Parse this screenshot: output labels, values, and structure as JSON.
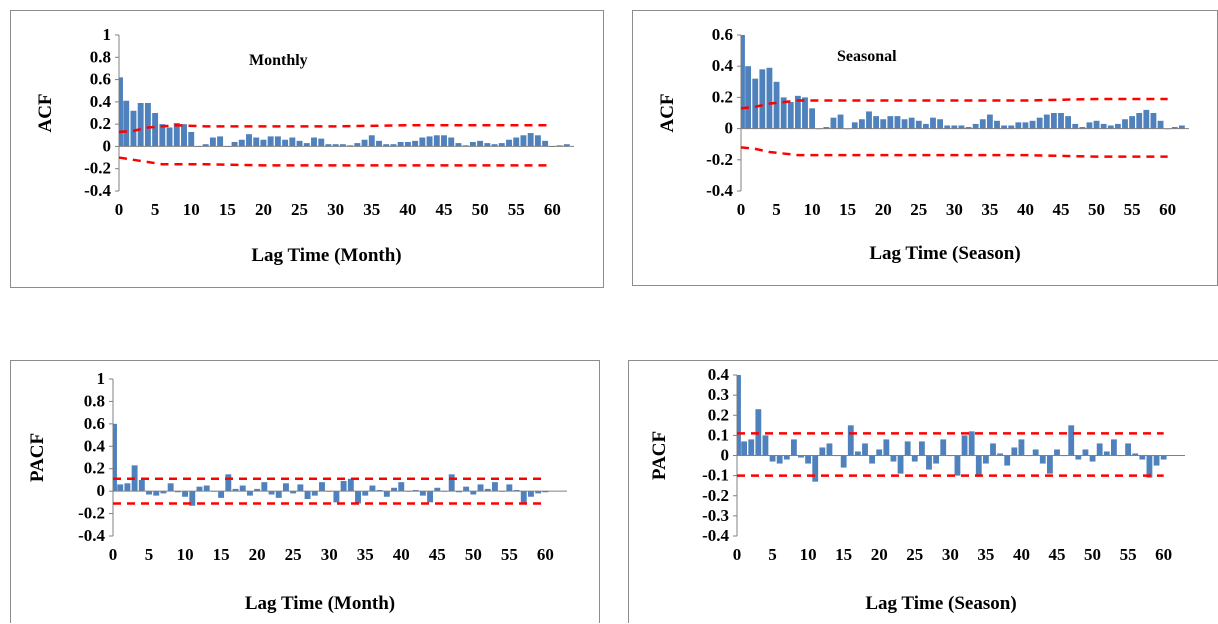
{
  "colors": {
    "bar": "#4f81bd",
    "confidence": "#ff0000",
    "axis": "#808080",
    "frame": "#8c8c8c"
  },
  "chart_data": [
    {
      "type": "bar",
      "name": "acf-monthly",
      "annotation": "Monthly",
      "ylabel": "ACF",
      "xlabel": "Lag Time (Month)",
      "ylim": [
        -0.4,
        1.0
      ],
      "yticks": [
        1,
        0.8,
        0.6,
        0.4,
        0.2,
        0,
        -0.2,
        -0.4
      ],
      "ytick_labels": [
        "1",
        "0.8",
        "0.6",
        "0.4",
        "0.2",
        "0",
        "-0.2",
        "-0.4"
      ],
      "xlim": [
        0,
        63
      ],
      "xticks": [
        0,
        5,
        10,
        15,
        20,
        25,
        30,
        35,
        40,
        45,
        50,
        55,
        60
      ],
      "grid": false,
      "series": [
        {
          "x": [
            0,
            1,
            2,
            3,
            4,
            5,
            6,
            7,
            8,
            9,
            10,
            11,
            12,
            13,
            14,
            15,
            16,
            17,
            18,
            19,
            20,
            21,
            22,
            23,
            24,
            25,
            26,
            27,
            28,
            29,
            30,
            31,
            32,
            33,
            34,
            35,
            36,
            37,
            38,
            39,
            40,
            41,
            42,
            43,
            44,
            45,
            46,
            47,
            48,
            49,
            50,
            51,
            52,
            53,
            54,
            55,
            56,
            57,
            58,
            59,
            60,
            61,
            62
          ],
          "values": [
            0.62,
            0.41,
            0.32,
            0.39,
            0.39,
            0.3,
            0.2,
            0.17,
            0.21,
            0.2,
            0.13,
            0.0,
            0.02,
            0.08,
            0.09,
            0.0,
            0.04,
            0.06,
            0.11,
            0.08,
            0.06,
            0.09,
            0.09,
            0.06,
            0.08,
            0.05,
            0.03,
            0.08,
            0.07,
            0.02,
            0.02,
            0.02,
            0.01,
            0.03,
            0.06,
            0.1,
            0.05,
            0.02,
            0.02,
            0.04,
            0.04,
            0.05,
            0.08,
            0.09,
            0.1,
            0.1,
            0.08,
            0.03,
            0.01,
            0.04,
            0.05,
            0.03,
            0.02,
            0.03,
            0.06,
            0.08,
            0.1,
            0.12,
            0.1,
            0.05,
            0.0,
            0.01,
            0.02
          ]
        }
      ],
      "confidence_upper": {
        "x": [
          0,
          2,
          4,
          6,
          8,
          12,
          20,
          30,
          40,
          50,
          60
        ],
        "values": [
          0.13,
          0.14,
          0.17,
          0.18,
          0.19,
          0.18,
          0.18,
          0.18,
          0.19,
          0.19,
          0.19
        ]
      },
      "confidence_lower": {
        "x": [
          0,
          2,
          4,
          6,
          8,
          12,
          20,
          30,
          40,
          50,
          60
        ],
        "values": [
          -0.1,
          -0.12,
          -0.14,
          -0.16,
          -0.16,
          -0.16,
          -0.17,
          -0.17,
          -0.17,
          -0.17,
          -0.17
        ]
      }
    },
    {
      "type": "bar",
      "name": "acf-seasonal",
      "annotation": "Seasonal",
      "ylabel": "ACF",
      "xlabel": "Lag Time (Season)",
      "ylim": [
        -0.4,
        0.6
      ],
      "yticks": [
        0.6,
        0.4,
        0.2,
        0,
        -0.2,
        -0.4
      ],
      "ytick_labels": [
        "0.6",
        "0.4",
        "0.2",
        "0",
        "-0.2",
        "-0.4"
      ],
      "xlim": [
        0,
        63
      ],
      "xticks": [
        0,
        5,
        10,
        15,
        20,
        25,
        30,
        35,
        40,
        45,
        50,
        55,
        60
      ],
      "grid": false,
      "series": [
        {
          "x": [
            0,
            1,
            2,
            3,
            4,
            5,
            6,
            7,
            8,
            9,
            10,
            11,
            12,
            13,
            14,
            15,
            16,
            17,
            18,
            19,
            20,
            21,
            22,
            23,
            24,
            25,
            26,
            27,
            28,
            29,
            30,
            31,
            32,
            33,
            34,
            35,
            36,
            37,
            38,
            39,
            40,
            41,
            42,
            43,
            44,
            45,
            46,
            47,
            48,
            49,
            50,
            51,
            52,
            53,
            54,
            55,
            56,
            57,
            58,
            59,
            60,
            61,
            62
          ],
          "values": [
            0.6,
            0.4,
            0.32,
            0.38,
            0.39,
            0.3,
            0.2,
            0.17,
            0.21,
            0.2,
            0.13,
            0.0,
            0.01,
            0.07,
            0.09,
            0.0,
            0.04,
            0.06,
            0.11,
            0.08,
            0.06,
            0.08,
            0.08,
            0.06,
            0.07,
            0.05,
            0.03,
            0.07,
            0.06,
            0.02,
            0.02,
            0.02,
            0.01,
            0.03,
            0.06,
            0.09,
            0.05,
            0.02,
            0.02,
            0.04,
            0.04,
            0.05,
            0.07,
            0.09,
            0.1,
            0.1,
            0.08,
            0.03,
            0.01,
            0.04,
            0.05,
            0.03,
            0.02,
            0.03,
            0.06,
            0.08,
            0.1,
            0.12,
            0.1,
            0.05,
            0.0,
            0.01,
            0.02
          ]
        }
      ],
      "confidence_upper": {
        "x": [
          0,
          2,
          4,
          6,
          8,
          12,
          20,
          30,
          40,
          50,
          60
        ],
        "values": [
          0.13,
          0.14,
          0.16,
          0.17,
          0.18,
          0.18,
          0.18,
          0.18,
          0.18,
          0.19,
          0.19
        ]
      },
      "confidence_lower": {
        "x": [
          0,
          2,
          4,
          6,
          8,
          12,
          20,
          30,
          40,
          50,
          60
        ],
        "values": [
          -0.12,
          -0.13,
          -0.15,
          -0.16,
          -0.17,
          -0.17,
          -0.17,
          -0.17,
          -0.17,
          -0.18,
          -0.18
        ]
      }
    },
    {
      "type": "bar",
      "name": "pacf-monthly",
      "ylabel": "PACF",
      "xlabel": "Lag Time (Month)",
      "ylim": [
        -0.4,
        1.0
      ],
      "yticks": [
        1,
        0.8,
        0.6,
        0.4,
        0.2,
        0,
        -0.2,
        -0.4
      ],
      "ytick_labels": [
        "1",
        "0.8",
        "0.6",
        "0.4",
        "0.2",
        "0",
        "-0.2",
        "-0.4"
      ],
      "xlim": [
        0,
        63
      ],
      "xticks": [
        0,
        5,
        10,
        15,
        20,
        25,
        30,
        35,
        40,
        45,
        50,
        55,
        60
      ],
      "grid": false,
      "series": [
        {
          "x": [
            0,
            1,
            2,
            3,
            4,
            5,
            6,
            7,
            8,
            9,
            10,
            11,
            12,
            13,
            14,
            15,
            16,
            17,
            18,
            19,
            20,
            21,
            22,
            23,
            24,
            25,
            26,
            27,
            28,
            29,
            30,
            31,
            32,
            33,
            34,
            35,
            36,
            37,
            38,
            39,
            40,
            41,
            42,
            43,
            44,
            45,
            46,
            47,
            48,
            49,
            50,
            51,
            52,
            53,
            54,
            55,
            56,
            57,
            58,
            59,
            60
          ],
          "values": [
            0.6,
            0.06,
            0.07,
            0.23,
            0.1,
            -0.03,
            -0.04,
            -0.02,
            0.07,
            -0.01,
            -0.05,
            -0.13,
            0.04,
            0.05,
            0.0,
            -0.06,
            0.15,
            0.02,
            0.05,
            -0.04,
            0.02,
            0.08,
            -0.03,
            -0.06,
            0.07,
            -0.02,
            0.06,
            -0.07,
            -0.04,
            0.08,
            0.0,
            -0.1,
            0.09,
            0.11,
            -0.11,
            -0.04,
            0.05,
            0.01,
            -0.05,
            0.03,
            0.08,
            0.0,
            0.01,
            -0.04,
            -0.1,
            0.03,
            0.0,
            0.15,
            -0.01,
            0.04,
            -0.03,
            0.06,
            0.02,
            0.08,
            0.0,
            0.06,
            0.01,
            -0.11,
            -0.05,
            -0.02,
            -0.01
          ]
        }
      ],
      "confidence_upper": 0.11,
      "confidence_lower": -0.11
    },
    {
      "type": "bar",
      "name": "pacf-seasonal",
      "ylabel": "PACF",
      "xlabel": "Lag Time (Season)",
      "ylim": [
        -0.4,
        0.4
      ],
      "yticks": [
        0.4,
        0.3,
        0.2,
        0.1,
        0,
        -0.1,
        -0.2,
        -0.3,
        -0.4
      ],
      "ytick_labels": [
        "0.4",
        "0.3",
        "0.2",
        "0.1",
        "0",
        "-0.1",
        "-0.2",
        "-0.3",
        "-0.4"
      ],
      "xlim": [
        0,
        63
      ],
      "xticks": [
        0,
        5,
        10,
        15,
        20,
        25,
        30,
        35,
        40,
        45,
        50,
        55,
        60
      ],
      "grid": false,
      "series": [
        {
          "x": [
            0,
            1,
            2,
            3,
            4,
            5,
            6,
            7,
            8,
            9,
            10,
            11,
            12,
            13,
            14,
            15,
            16,
            17,
            18,
            19,
            20,
            21,
            22,
            23,
            24,
            25,
            26,
            27,
            28,
            29,
            30,
            31,
            32,
            33,
            34,
            35,
            36,
            37,
            38,
            39,
            40,
            41,
            42,
            43,
            44,
            45,
            46,
            47,
            48,
            49,
            50,
            51,
            52,
            53,
            54,
            55,
            56,
            57,
            58,
            59,
            60
          ],
          "values": [
            0.4,
            0.07,
            0.08,
            0.23,
            0.1,
            -0.03,
            -0.04,
            -0.02,
            0.08,
            -0.01,
            -0.04,
            -0.13,
            0.04,
            0.06,
            0.0,
            -0.06,
            0.15,
            0.02,
            0.06,
            -0.04,
            0.03,
            0.08,
            -0.03,
            -0.09,
            0.07,
            -0.03,
            0.07,
            -0.07,
            -0.04,
            0.08,
            0.0,
            -0.1,
            0.1,
            0.12,
            -0.1,
            -0.04,
            0.06,
            0.01,
            -0.05,
            0.04,
            0.08,
            0.0,
            0.03,
            -0.04,
            -0.09,
            0.03,
            0.0,
            0.15,
            -0.02,
            0.03,
            -0.03,
            0.06,
            0.02,
            0.08,
            0.0,
            0.06,
            0.01,
            -0.02,
            -0.11,
            -0.05,
            -0.02
          ]
        }
      ],
      "confidence_upper": 0.11,
      "confidence_lower": -0.1
    }
  ]
}
